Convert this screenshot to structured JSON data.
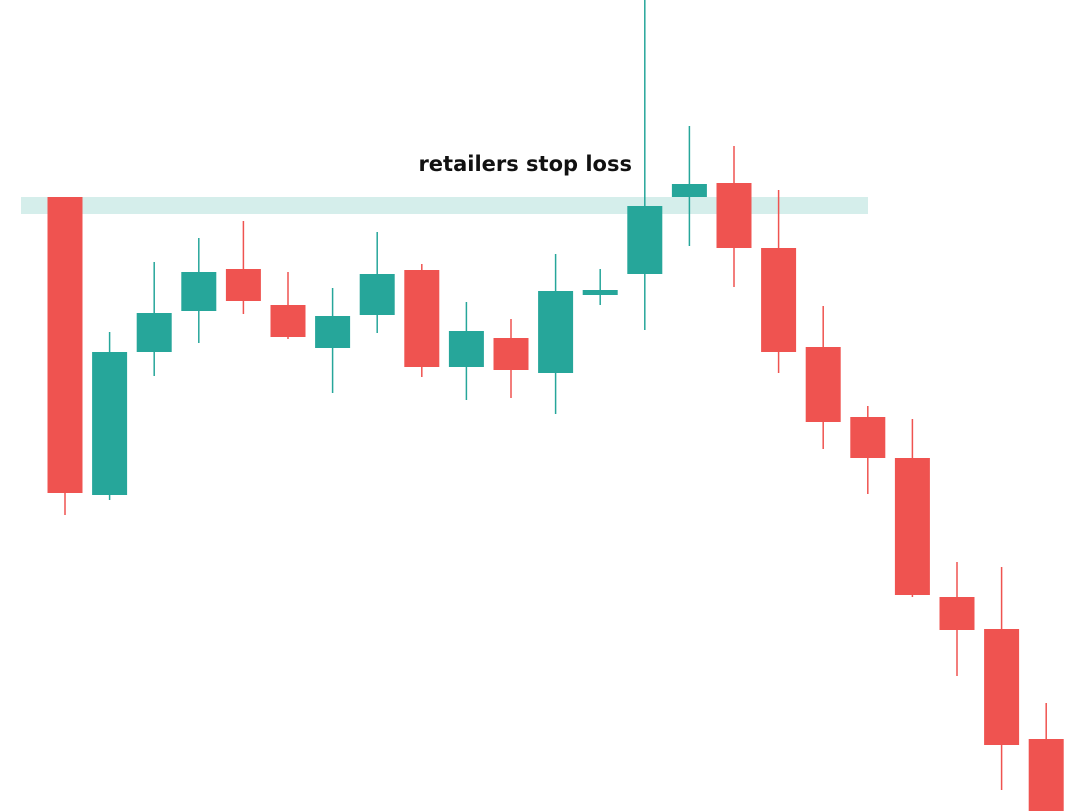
{
  "chart_data": {
    "type": "candlestick",
    "ylim": [
      0,
      811
    ],
    "up_color": "#26a69a",
    "down_color": "#ef5350",
    "zone": {
      "low": 597,
      "high": 614,
      "label": "retailers stop loss",
      "color": "#d5eeeb"
    },
    "open": [
      614,
      316,
      459,
      500,
      542,
      506,
      463,
      496,
      541,
      444,
      473,
      438,
      516,
      537,
      614,
      628,
      563,
      464,
      394,
      353,
      214,
      182,
      72
    ],
    "high": [
      614,
      479,
      549,
      573,
      590,
      539,
      523,
      579,
      547,
      509,
      492,
      557,
      542,
      811,
      685,
      665,
      621,
      505,
      405,
      392,
      249,
      244,
      108
    ],
    "low": [
      296,
      311,
      435,
      468,
      497,
      472,
      418,
      478,
      434,
      411,
      413,
      397,
      506,
      481,
      565,
      524,
      438,
      362,
      317,
      214,
      135,
      21,
      0
    ],
    "close": [
      318,
      459,
      498,
      539,
      510,
      474,
      495,
      537,
      444,
      480,
      441,
      520,
      521,
      605,
      627,
      563,
      459,
      389,
      353,
      216,
      181,
      66,
      0
    ]
  }
}
